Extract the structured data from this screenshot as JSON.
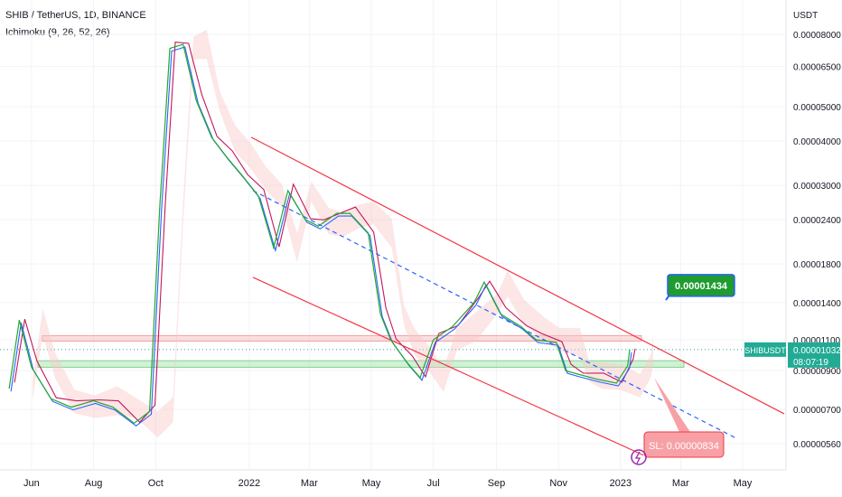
{
  "header": {
    "symbol_line": "SHIB / TetherUS, 1D, BINANCE",
    "indicator": "Ichimoku (9, 26, 52, 26)"
  },
  "colors": {
    "price_line": "#22a82f",
    "tenkan": "#2962ff",
    "kijun": "#c2185b",
    "cloud_bull": "#c8e6c9",
    "cloud_bear": "#f8c8c8",
    "channel": "#f23645",
    "support_zone": "#7fd38a",
    "resistance_zone": "#f5a3a3",
    "target_badge": "#1e9c2f",
    "stop_badge": "#f7a1a6",
    "current_price_badge": "#22ab94"
  },
  "chart_data": {
    "type": "line",
    "x_axis_labels": [
      "Jun",
      "Aug",
      "Oct",
      "2022",
      "Mar",
      "May",
      "Jul",
      "Sep",
      "Nov",
      "2023",
      "Mar",
      "May"
    ],
    "y_axis_unit": "USDT",
    "y_scale": "log",
    "y_tick_labels": [
      "0.00008000",
      "0.00006500",
      "0.00005000",
      "0.00004000",
      "0.00003000",
      "0.00002400",
      "0.00001800",
      "0.00001400",
      "0.00001100",
      "0.00000900",
      "0.00000700",
      "0.00000560"
    ],
    "y_ticks": [
      8e-05,
      6.5e-05,
      5e-05,
      4e-05,
      3e-05,
      2.4e-05,
      1.8e-05,
      1.4e-05,
      1.1e-05,
      9e-06,
      7e-06,
      5.6e-06
    ],
    "series": [
      {
        "role": "price",
        "x": [
          "2021-05-10",
          "2021-05-20",
          "2021-06-01",
          "2021-06-20",
          "2021-07-10",
          "2021-08-01",
          "2021-08-20",
          "2021-09-10",
          "2021-09-25",
          "2021-10-05",
          "2021-10-15",
          "2021-10-28",
          "2021-11-10",
          "2021-11-25",
          "2021-12-10",
          "2021-12-25",
          "2022-01-10",
          "2022-01-25",
          "2022-02-08",
          "2022-02-25",
          "2022-03-10",
          "2022-03-28",
          "2022-04-10",
          "2022-04-28",
          "2022-05-10",
          "2022-05-20",
          "2022-06-05",
          "2022-06-18",
          "2022-07-01",
          "2022-07-20",
          "2022-08-10",
          "2022-08-20",
          "2022-09-05",
          "2022-09-25",
          "2022-10-10",
          "2022-10-30",
          "2022-11-08",
          "2022-11-20",
          "2022-12-10",
          "2022-12-28",
          "2023-01-08",
          "2023-01-10"
        ],
        "y": [
          8e-06,
          1.25e-05,
          9.2e-06,
          7.5e-06,
          7.1e-06,
          7.4e-06,
          7.1e-06,
          6.4e-06,
          6.9e-06,
          2.6e-05,
          7.3e-05,
          7.5e-05,
          5.2e-05,
          4.1e-05,
          3.6e-05,
          3.2e-05,
          2.8e-05,
          2e-05,
          2.9e-05,
          2.4e-05,
          2.3e-05,
          2.5e-05,
          2.5e-05,
          2.2e-05,
          1.3e-05,
          1.1e-05,
          9.5e-06,
          8.6e-06,
          1.1e-05,
          1.2e-05,
          1.4e-05,
          1.6e-05,
          1.3e-05,
          1.2e-05,
          1.1e-05,
          1.08e-05,
          9e-06,
          8.8e-06,
          8.5e-06,
          8.3e-06,
          9.3e-06,
          1.032e-05
        ]
      }
    ],
    "annotations": {
      "target_label": "0.00001434",
      "target_value": 1.434e-05,
      "stop_label": "SL: 0.00000834",
      "stop_value": 8.34e-06,
      "current_symbol": "SHIBUSDT",
      "current_price_label": "0.00001032",
      "current_price_value": 1.032e-05,
      "countdown": "08:07:19",
      "resistance_zone": [
        1.09e-05,
        1.13e-05
      ],
      "support_zone": [
        9.2e-06,
        9.6e-06
      ]
    }
  }
}
